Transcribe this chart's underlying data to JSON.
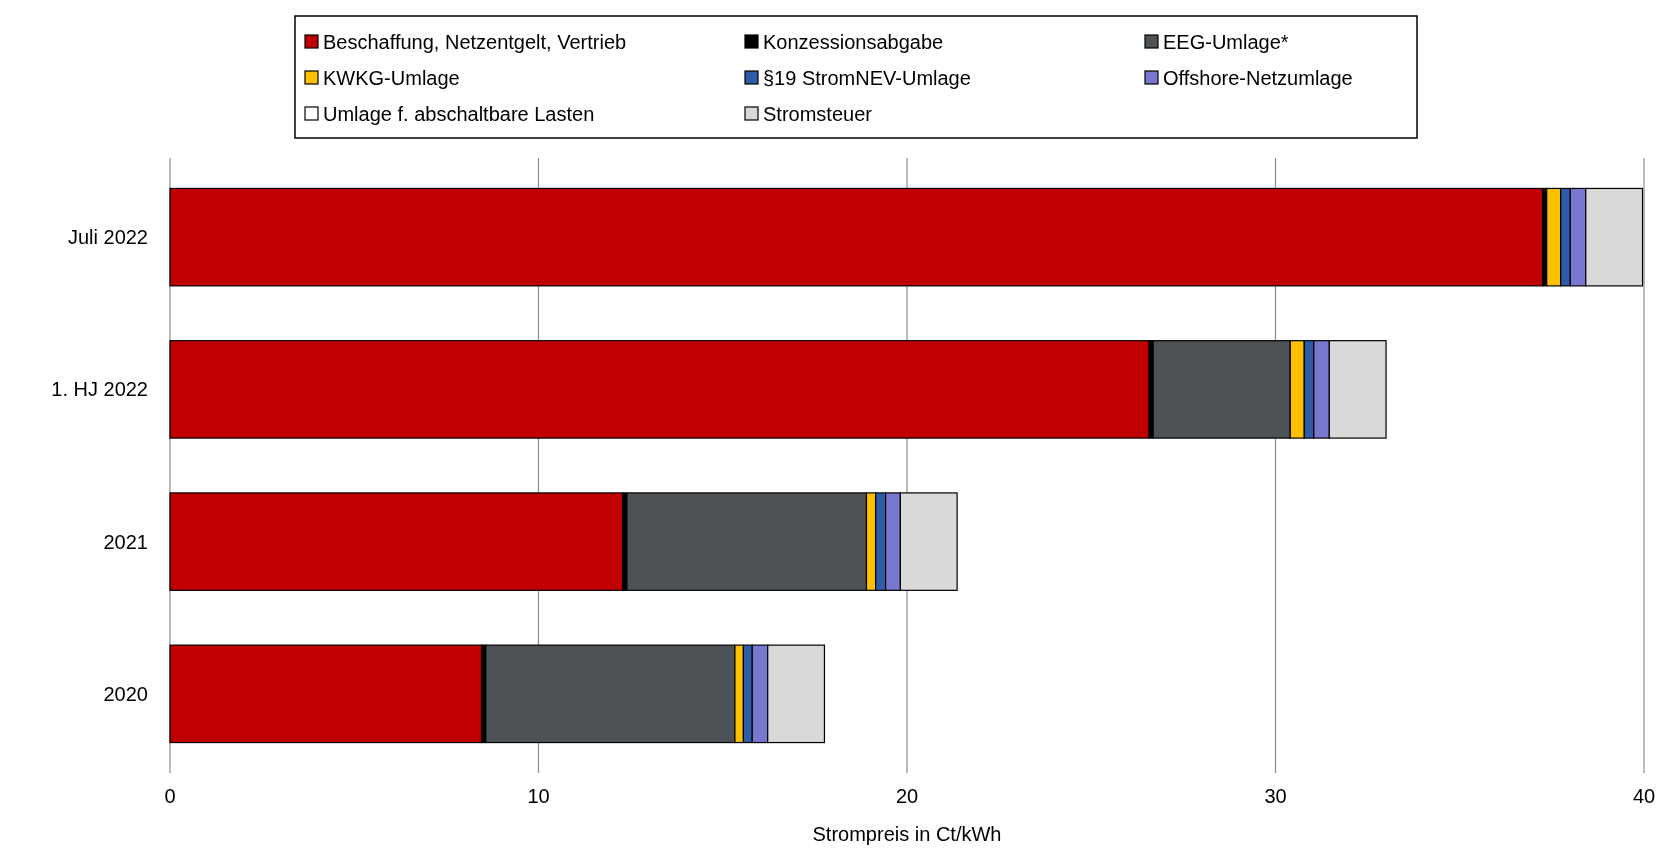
{
  "chart_data": {
    "type": "bar",
    "orientation": "horizontal",
    "stacked": true,
    "xlabel": "Strompreis in Ct/kWh",
    "categories": [
      "Juli 2022",
      "1. HJ 2022",
      "2021",
      "2020"
    ],
    "series": [
      {
        "name": "Beschaffung, Netzentgelt, Vertrieb",
        "color": "#c00000",
        "values": [
          37.25,
          26.57,
          12.29,
          8.46
        ]
      },
      {
        "name": "Konzessionsabgabe",
        "color": "#000000",
        "values": [
          0.11,
          0.11,
          0.11,
          0.11
        ]
      },
      {
        "name": "EEG-Umlage*",
        "color": "#4d5256",
        "values": [
          0,
          3.72,
          6.5,
          6.76
        ]
      },
      {
        "name": "KWKG-Umlage",
        "color": "#ffc000",
        "values": [
          0.38,
          0.38,
          0.25,
          0.23
        ]
      },
      {
        "name": "§19 StromNEV-Umlage",
        "color": "#2e5ca8",
        "values": [
          0.26,
          0.26,
          0.27,
          0.24
        ]
      },
      {
        "name": "Offshore-Netzumlage",
        "color": "#7878d0",
        "values": [
          0.42,
          0.42,
          0.4,
          0.42
        ]
      },
      {
        "name": "Umlage f. abschaltbare Lasten",
        "color": "#ffffff",
        "values": [
          0,
          0,
          null,
          null
        ]
      },
      {
        "name": "Stromsteuer",
        "color": "#d9d9d9",
        "values": [
          1.54,
          1.54,
          1.54,
          1.54
        ]
      }
    ],
    "xlim": [
      0,
      40
    ],
    "xticks": [
      0,
      10,
      20,
      30,
      40
    ],
    "grid": "x",
    "legend": "top"
  }
}
